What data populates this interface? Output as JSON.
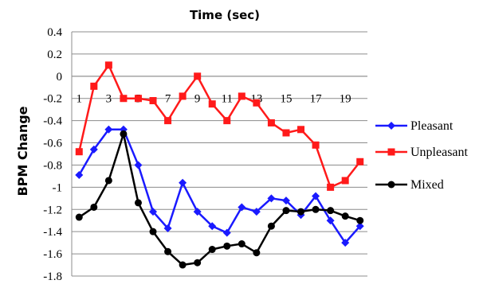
{
  "chart_data": {
    "type": "line",
    "title": "Time (sec)",
    "ylabel": "BPM Change",
    "xlabel": "",
    "ylim": [
      -1.8,
      0.4
    ],
    "ytick_step": 0.2,
    "yticks": [
      "0.4",
      "0.2",
      "0",
      "-0.2",
      "-0.4",
      "-0.6",
      "-0.8",
      "-1",
      "-1.2",
      "-1.4",
      "-1.6",
      "-1.8"
    ],
    "x": [
      1,
      2,
      3,
      4,
      5,
      6,
      7,
      8,
      9,
      10,
      11,
      12,
      13,
      14,
      15,
      16,
      17,
      18,
      19,
      20
    ],
    "xtick_labels": [
      "1",
      "3",
      "5",
      "7",
      "9",
      "11",
      "13",
      "15",
      "17",
      "19"
    ],
    "xtick_label_y": -0.2,
    "grid": true,
    "legend_position": "right",
    "series": [
      {
        "name": "Pleasant",
        "color": "#1a1aff",
        "marker": "diamond",
        "values": [
          -0.89,
          -0.66,
          -0.48,
          -0.48,
          -0.8,
          -1.22,
          -1.37,
          -0.96,
          -1.22,
          -1.35,
          -1.41,
          -1.18,
          -1.22,
          -1.1,
          -1.12,
          -1.25,
          -1.08,
          -1.3,
          -1.5,
          -1.35
        ]
      },
      {
        "name": "Unpleasant",
        "color": "#ff1a1a",
        "marker": "square",
        "values": [
          -0.68,
          -0.09,
          0.1,
          -0.2,
          -0.2,
          -0.22,
          -0.4,
          -0.18,
          0.0,
          -0.25,
          -0.4,
          -0.18,
          -0.24,
          -0.42,
          -0.51,
          -0.48,
          -0.62,
          -1.0,
          -0.94,
          -0.77
        ]
      },
      {
        "name": "Mixed",
        "color": "#000000",
        "marker": "circle",
        "values": [
          -1.27,
          -1.18,
          -0.94,
          -0.52,
          -1.14,
          -1.4,
          -1.58,
          -1.7,
          -1.68,
          -1.56,
          -1.53,
          -1.51,
          -1.59,
          -1.35,
          -1.21,
          -1.22,
          -1.2,
          -1.21,
          -1.26,
          -1.3
        ]
      }
    ]
  }
}
